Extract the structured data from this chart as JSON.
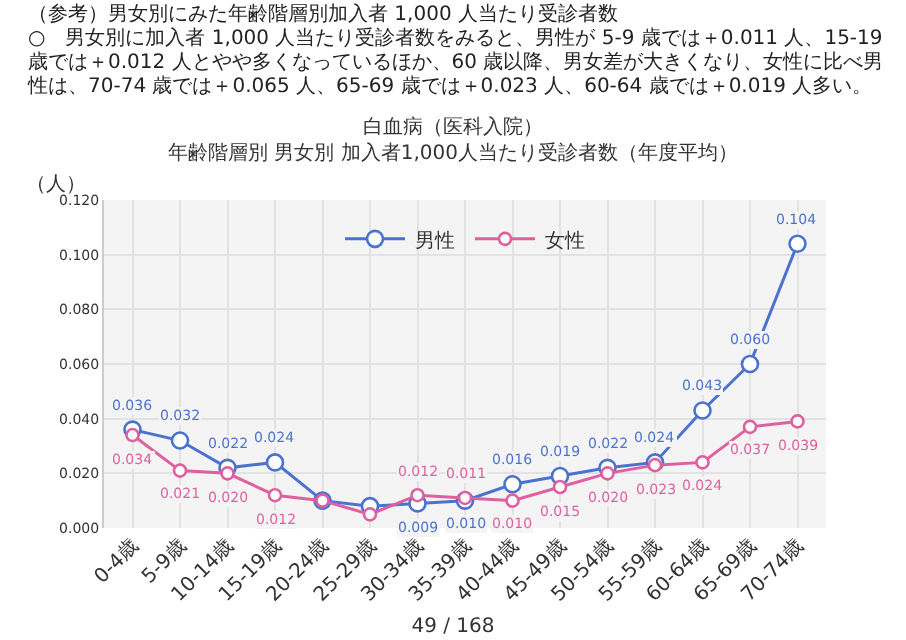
{
  "chart_data": {
    "type": "line",
    "title": "白血病（医科入院）",
    "subtitle": "年齢階層別 男女別 加入者1,000人当たり受診者数（年度平均）",
    "ylabel": "（人）",
    "annotations": [
      "（参考）男女別にみた年齢階層別加入者 1,000 人当たり受診者数",
      "○　男女別に加入者 1,000 人当たり受診者数をみると、男性が 5-9 歳では＋0.011 人、15-19 歳では＋0.012 人とやや多くなっているほか、60 歳以降、男女差が大きくなり、女性に比べ男性は、70-74 歳では＋0.065 人、65-69 歳では＋0.023 人、60-64 歳では＋0.019 人多い。",
      "49 / 168"
    ],
    "categories": [
      "0-4歳",
      "5-9歳",
      "10-14歳",
      "15-19歳",
      "20-24歳",
      "25-29歳",
      "30-34歳",
      "35-39歳",
      "40-44歳",
      "45-49歳",
      "50-54歳",
      "55-59歳",
      "60-64歳",
      "65-69歳",
      "70-74歳"
    ],
    "series": [
      {
        "name": "男性",
        "color": "#4a72d0",
        "values": [
          0.036,
          0.032,
          0.022,
          0.024,
          0.01,
          0.008,
          0.009,
          0.01,
          0.016,
          0.019,
          0.022,
          0.024,
          0.043,
          0.06,
          0.104
        ],
        "value_labels": [
          "0.036",
          "0.032",
          "0.022",
          "0.024",
          null,
          null,
          "0.009",
          "0.010",
          "0.016",
          "0.019",
          "0.022",
          "0.024",
          "0.043",
          "0.060",
          "0.104"
        ]
      },
      {
        "name": "女性",
        "color": "#e0609f",
        "values": [
          0.034,
          0.021,
          0.02,
          0.012,
          0.01,
          0.005,
          0.012,
          0.011,
          0.01,
          0.015,
          0.02,
          0.023,
          0.024,
          0.037,
          0.039
        ],
        "value_labels": [
          "0.034",
          "0.021",
          "0.020",
          "0.012",
          null,
          null,
          "0.012",
          "0.011",
          "0.010",
          "0.015",
          "0.020",
          "0.023",
          "0.024",
          "0.037",
          "0.039"
        ]
      }
    ],
    "ylim": [
      0,
      0.12
    ],
    "yticks": [
      {
        "value": 0,
        "label": "0.000"
      },
      {
        "value": 0.02,
        "label": "0.020"
      },
      {
        "value": 0.04,
        "label": "0.040"
      },
      {
        "value": 0.06,
        "label": "0.060"
      },
      {
        "value": 0.08,
        "label": "0.080"
      },
      {
        "value": 0.1,
        "label": "0.100"
      },
      {
        "value": 0.12,
        "label": "0.120"
      }
    ],
    "grid": true,
    "legend": "top",
    "marker": "circle",
    "line_style": "solid"
  }
}
